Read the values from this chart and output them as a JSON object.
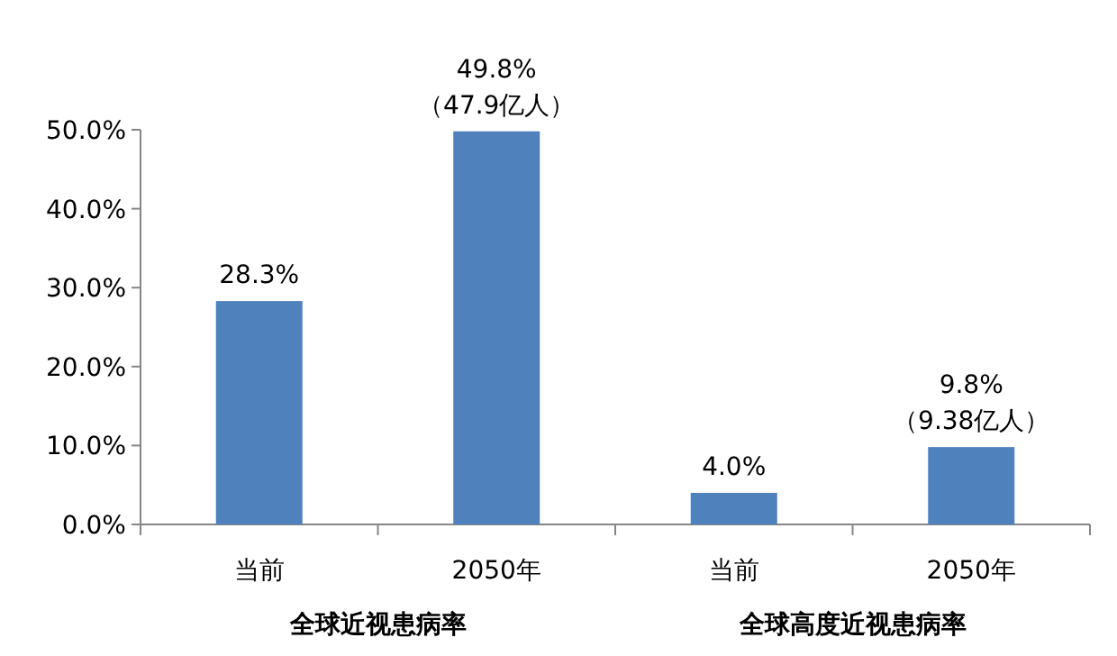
{
  "chart_data": {
    "type": "bar",
    "categories": [
      "当前",
      "2050年",
      "当前",
      "2050年"
    ],
    "values": [
      28.3,
      49.8,
      4.0,
      9.8
    ],
    "color": "#4f81bd",
    "value_labels": [
      "28.3%",
      "49.8%\n（47.9亿人）",
      "4.0%",
      "9.8%\n（9.38亿人）"
    ],
    "ylim": [
      0,
      50
    ],
    "yticks": [
      {
        "value": 0,
        "label": "0.0%"
      },
      {
        "value": 10,
        "label": "10.0%"
      },
      {
        "value": 20,
        "label": "20.0%"
      },
      {
        "value": 30,
        "label": "30.0%"
      },
      {
        "value": 40,
        "label": "40.0%"
      },
      {
        "value": 50,
        "label": "50.0%"
      }
    ],
    "annotations": [
      "全球近视患病率",
      "全球高度近视患病率"
    ],
    "grid": false
  }
}
